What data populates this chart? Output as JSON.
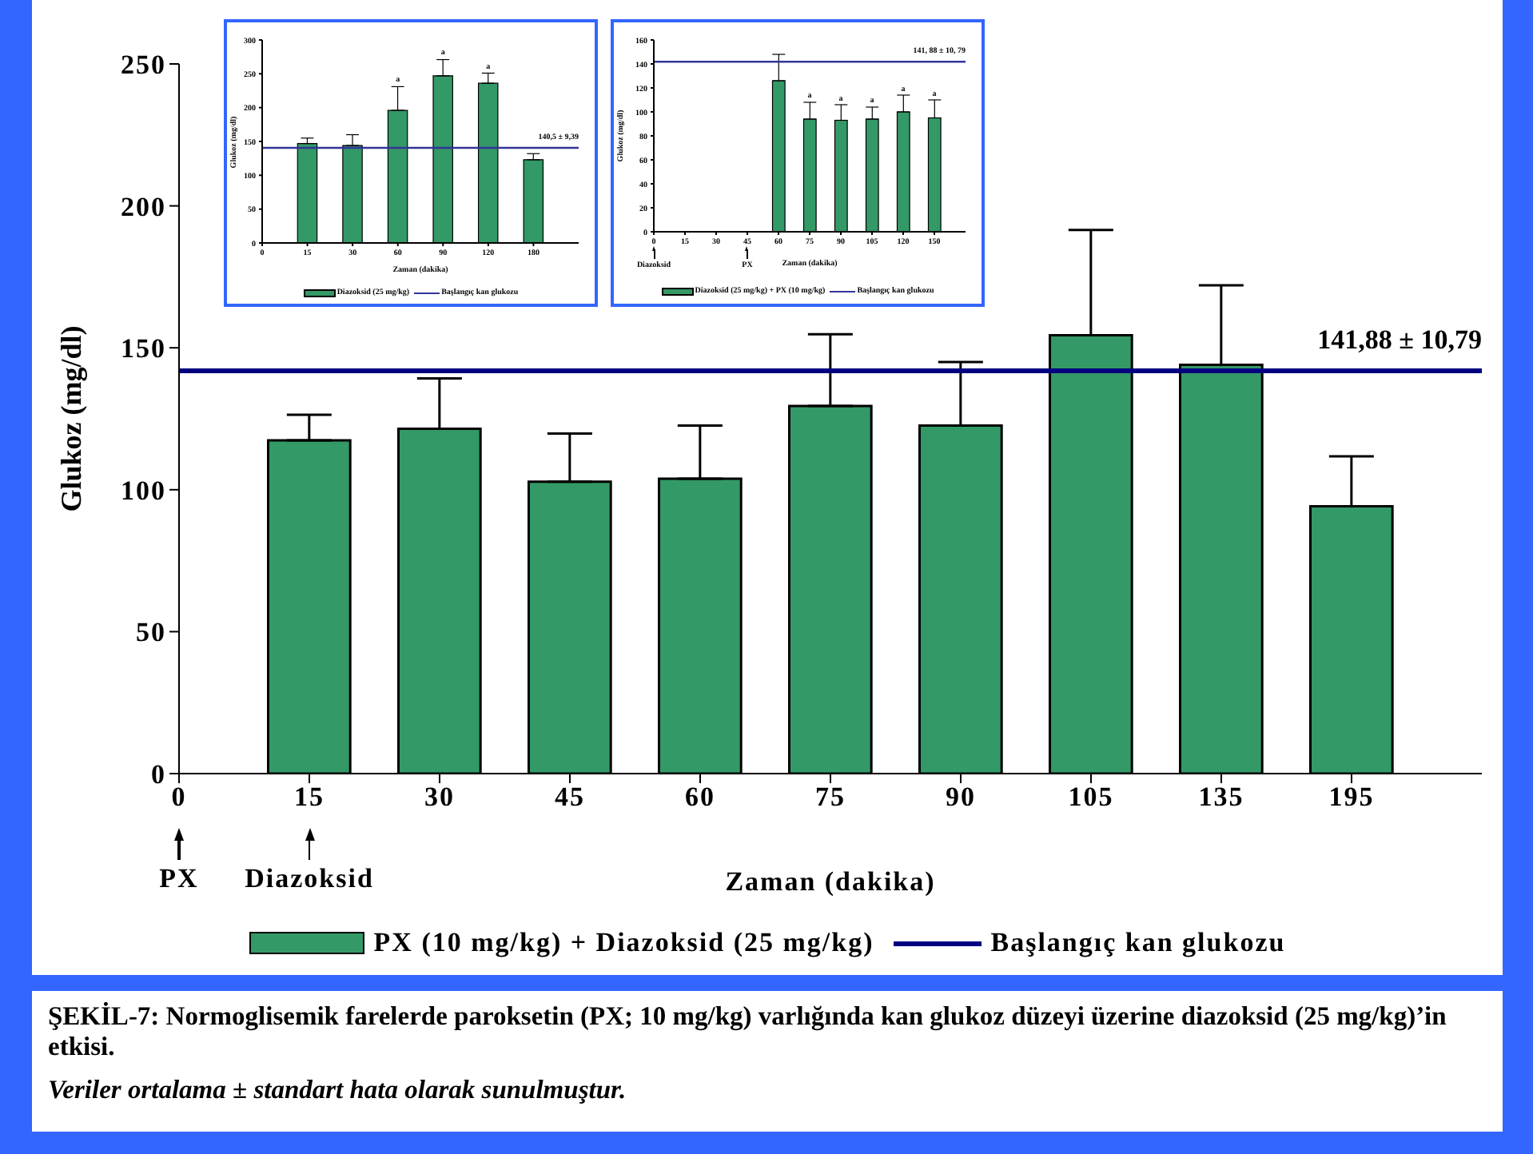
{
  "chart_data": [
    {
      "type": "bar",
      "xlabel": "Zaman (dakika)",
      "ylabel": "Glukoz (mg/dl)",
      "categories": [
        "0",
        "15",
        "30",
        "45",
        "60",
        "75",
        "90",
        "105",
        "135",
        "195",
        null
      ],
      "ylim": [
        0,
        250
      ],
      "yticks": [
        0,
        50,
        100,
        150,
        200,
        250
      ],
      "legend": "bottom",
      "series": [
        {
          "name": "PX (10 mg/kg) + Diazoksid (25 mg/kg)",
          "color": "#339966",
          "values": [
            null,
            117.4,
            121.5,
            102.8,
            103.9,
            129.5,
            122.6,
            154.4,
            144,
            94.2,
            null
          ],
          "errors": [
            null,
            [
              117.4,
              126.4
            ],
            [
              121.5,
              139.2
            ],
            [
              102.8,
              119.8
            ],
            [
              103.9,
              122.6
            ],
            [
              129.5,
              154.8
            ],
            [
              122.6,
              145
            ],
            [
              154.4,
              191.5
            ],
            [
              144,
              172
            ],
            [
              94.2,
              111.8
            ],
            null
          ]
        },
        {
          "type": "line",
          "name": "Başlangıç kan glukozu",
          "color": "#000080",
          "values": [
            141.88,
            141.88,
            141.88,
            141.88,
            141.88,
            141.88,
            141.88,
            141.88,
            141.88,
            141.88,
            141.88
          ]
        }
      ],
      "annotations": [
        {
          "text": "141,88 ± 10,79",
          "y": 141.88
        },
        "PX",
        "Diazoksid",
        "ŞEKİL-7: Normoglisemik farelerde paroksetin (PX; 10 mg/kg) varlığında kan glukoz düzeyi üzerine diazoksid (25 mg/kg)’in etkisi.",
        "Veriler ortalama ± standart hata olarak sunulmuştur."
      ]
    },
    {
      "type": "bar",
      "xlabel": "Zaman (dakika)",
      "ylabel": "Glukoz (mg/dl)",
      "categories": [
        "0",
        "15",
        "30",
        "60",
        "90",
        "120",
        "180",
        null
      ],
      "ylim": [
        0,
        300
      ],
      "yticks": [
        0,
        50,
        100,
        150,
        200,
        250,
        300
      ],
      "legend": "bottom",
      "series": [
        {
          "name": "Diazoksid (25 mg/kg)",
          "color": "#339966",
          "values": [
            null,
            147,
            144,
            196,
            247,
            236,
            123,
            null
          ],
          "errors": [
            null,
            [
              147,
              155
            ],
            [
              144,
              160
            ],
            [
              196,
              231
            ],
            [
              247,
              271
            ],
            [
              236,
              251
            ],
            [
              123,
              132
            ],
            null
          ]
        },
        {
          "type": "line",
          "name": "Başlangıç kan glukozu",
          "color": "#333399",
          "values": [
            140.5,
            140.5,
            140.5,
            140.5,
            140.5,
            140.5,
            140.5,
            140.5
          ]
        }
      ],
      "annotations": [
        {
          "text": "140,5 ± 9,39",
          "y": 140.5
        },
        {
          "text": "a",
          "x": "60",
          "y": 231
        },
        {
          "text": "a",
          "x": "90",
          "y": 247
        },
        {
          "text": "a",
          "x": "120",
          "y": 236
        }
      ]
    },
    {
      "type": "bar",
      "xlabel": "Zaman (dakika)",
      "ylabel": "Glukoz (mg/dl)",
      "categories": [
        "0",
        "15",
        "30",
        "45",
        "60",
        "75",
        "90",
        "105",
        "120",
        "150",
        null
      ],
      "ylim": [
        0,
        160
      ],
      "yticks": [
        0,
        20,
        40,
        60,
        80,
        100,
        120,
        140,
        160
      ],
      "legend": "bottom",
      "series": [
        {
          "name": "Diazoksid (25 mg/kg) + PX (10 mg/kg)",
          "color": "#339966",
          "values": [
            null,
            null,
            null,
            null,
            126,
            94,
            93,
            94,
            100,
            95,
            null
          ],
          "errors": [
            null,
            null,
            null,
            null,
            [
              126,
              148
            ],
            [
              94,
              108
            ],
            [
              93,
              106
            ],
            [
              94,
              104
            ],
            [
              100,
              114
            ],
            [
              95,
              110
            ],
            null
          ]
        },
        {
          "type": "line",
          "name": "Başlangıç kan glukozu",
          "color": "#333399",
          "values": [
            141.88,
            141.88,
            141.88,
            141.88,
            141.88,
            141.88,
            141.88,
            141.88,
            141.88,
            141.88,
            141.88
          ]
        }
      ],
      "annotations": [
        {
          "text": "141, 88 ± 10, 79",
          "y": 141.88
        },
        "Diazoksid",
        "PX",
        {
          "text": "a",
          "x": "75",
          "y": 94
        },
        {
          "text": "a",
          "x": "90",
          "y": 93
        },
        {
          "text": "a",
          "x": "105",
          "y": 94
        },
        {
          "text": "a",
          "x": "120",
          "y": 100
        },
        {
          "text": "a",
          "x": "150",
          "y": 95
        }
      ]
    }
  ]
}
